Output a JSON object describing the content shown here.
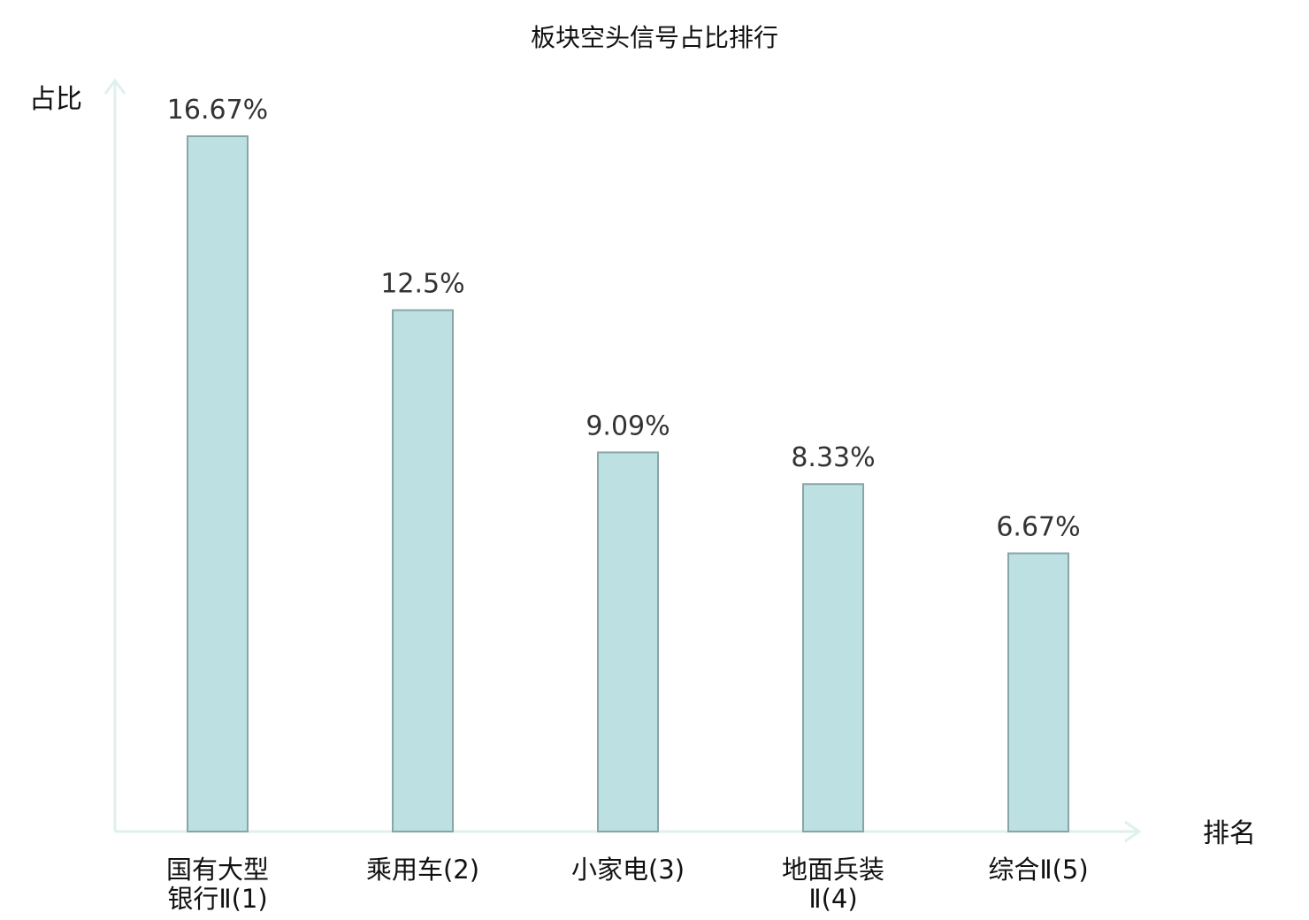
{
  "chart_data": {
    "type": "bar",
    "title": "板块空头信号占比排行",
    "xlabel": "排名",
    "ylabel": "占比",
    "categories": [
      {
        "lines": [
          "国有大型",
          "银行Ⅱ(1)"
        ],
        "highlight": false
      },
      {
        "lines": [
          "乘用车(2)"
        ],
        "highlight": false
      },
      {
        "lines": [
          "小家电(3)"
        ],
        "highlight": false
      },
      {
        "lines": [
          "地面兵装",
          "Ⅱ(4)"
        ],
        "highlight": true
      },
      {
        "lines": [
          "综合Ⅱ(5)"
        ],
        "highlight": false
      }
    ],
    "values": [
      16.67,
      12.5,
      9.09,
      8.33,
      6.67
    ],
    "value_labels": [
      "16.67%",
      "12.5%",
      "9.09%",
      "8.33%",
      "6.67%"
    ],
    "ylim": [
      0,
      20
    ],
    "grid": false,
    "colors": {
      "bar_fill": "#bde0e2",
      "bar_stroke": "#8aa5a6",
      "axis": "#dff0ee",
      "highlight_text": "#e0121c",
      "text": "#111111"
    }
  }
}
